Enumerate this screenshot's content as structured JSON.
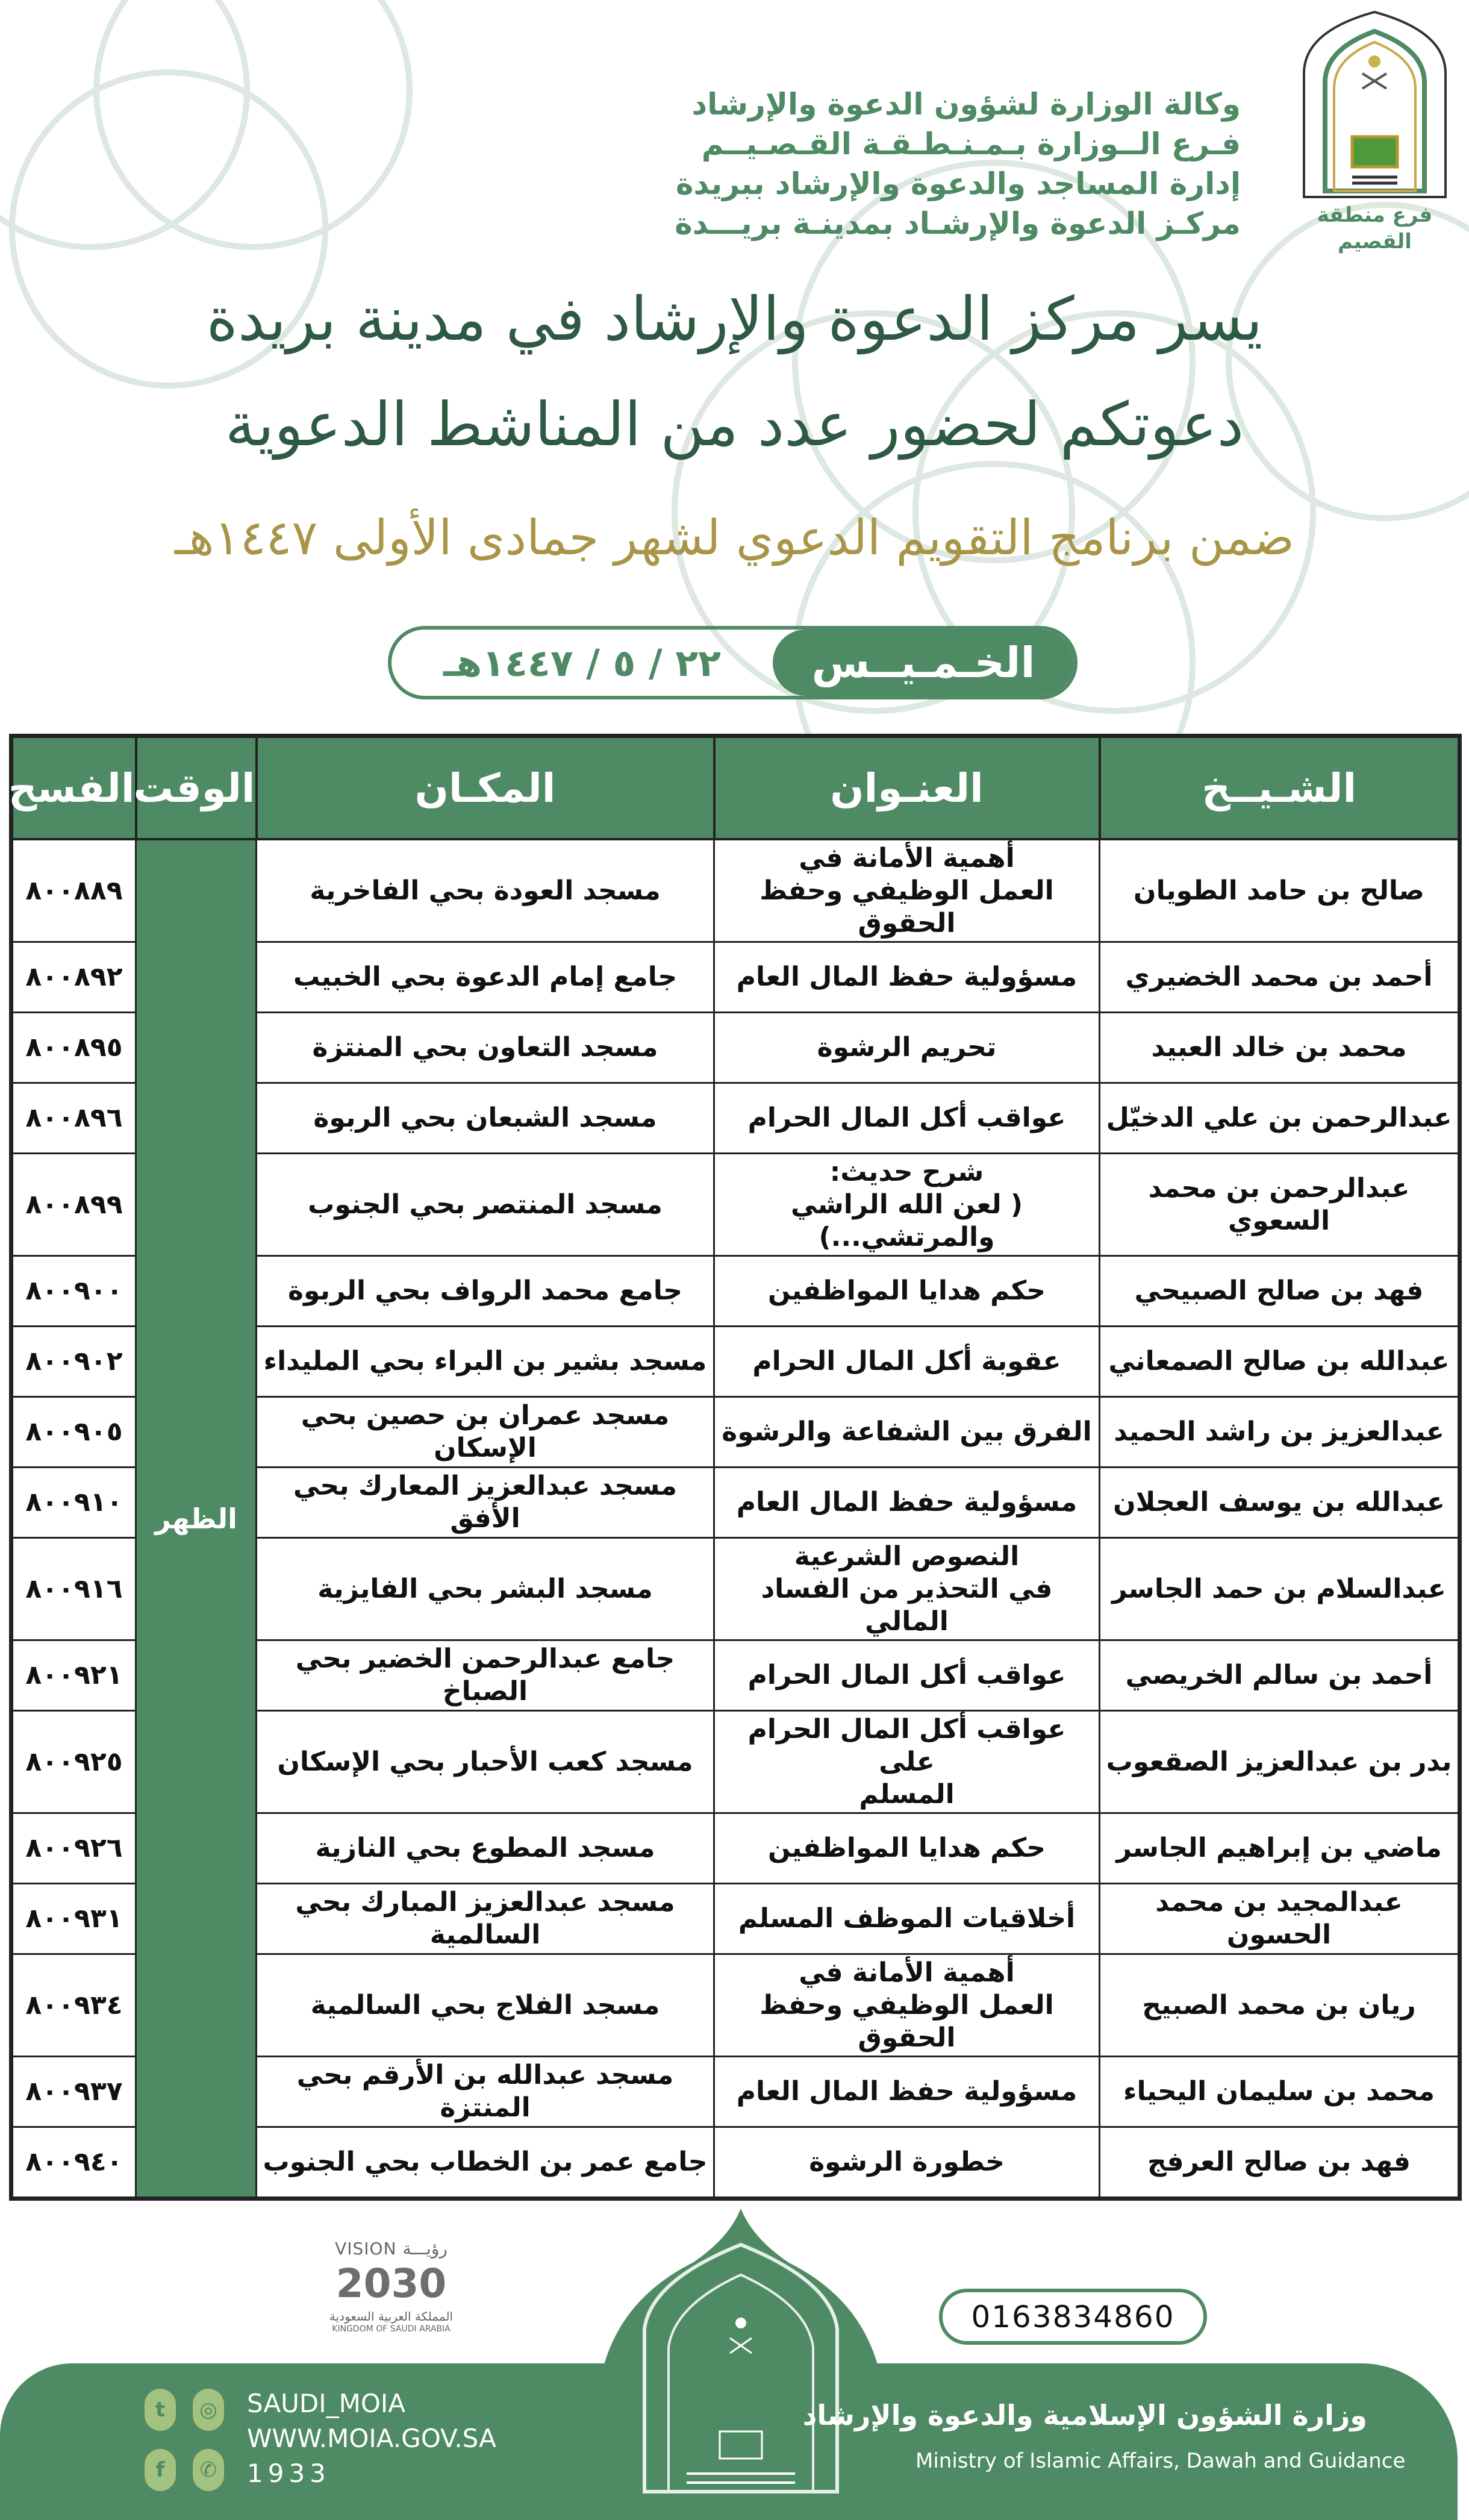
{
  "colors": {
    "brand_green": "#4e8a63",
    "title_green": "#2e5a44",
    "gold": "#a99548"
  },
  "header": {
    "lines": [
      "وكالة الوزارة لشؤون الدعوة والإرشاد",
      "فـرع الــوزارة بـمـنـطـقـة القـصـيــم",
      "إدارة المساجد والدعوة والإرشاد ببريدة",
      "مركـز الدعوة والإرشـاد بمدينـة بريـــدة"
    ],
    "logo_caption": "فرع منطقة القصيم"
  },
  "title": {
    "line1": "يسر مركز الدعوة والإرشاد في مدينة بريدة",
    "line2": "دعوتكم لحضور عدد من المناشط الدعوية",
    "line3": "ضمن برنامج التقويم الدعوي لشهر جمادى الأولى ١٤٤٧هـ"
  },
  "date_pill": {
    "day": "الخـمـيــس",
    "date": "٢٢ / ٥ / ١٤٤٧هـ"
  },
  "table": {
    "headers": {
      "sheikh": "الشـيــخ",
      "title": "العنـوان",
      "place": "المكـان",
      "time": "الوقت",
      "permit": "الفسح"
    },
    "time_value": "الظهر",
    "rows": [
      {
        "sheikh": "صالح بن حامد الطويان",
        "title": "أهمية الأمانة في\nالعمل الوظيفي وحفظ الحقوق",
        "place": "مسجد العودة بحي الفاخرية",
        "permit": "٨٠٠٨٨٩",
        "tall": true
      },
      {
        "sheikh": "أحمد بن محمد الخضيري",
        "title": "مسؤولية حفظ المال العام",
        "place": "جامع إمام الدعوة بحي الخبيب",
        "permit": "٨٠٠٨٩٢"
      },
      {
        "sheikh": "محمد بن خالد العبيد",
        "title": "تحريم الرشوة",
        "place": "مسجد  التعاون بحي المنتزة",
        "permit": "٨٠٠٨٩٥"
      },
      {
        "sheikh": "عبدالرحمن بن علي الدخيّل",
        "title": "عواقب أكل المال الحرام",
        "place": "مسجد الشبعان بحي الربوة",
        "permit": "٨٠٠٨٩٦"
      },
      {
        "sheikh": "عبدالرحمن بن محمد السعوي",
        "title": "شرح حديث:\n( لعن الله الراشي والمرتشي...)",
        "place": "مسجد المنتصر بحي الجنوب",
        "permit": "٨٠٠٨٩٩",
        "tall": true
      },
      {
        "sheikh": "فهد بن صالح الصبيحي",
        "title": "حكم هدايا المواظفين",
        "place": "جامع محمد الرواف بحي الربوة",
        "permit": "٨٠٠٩٠٠"
      },
      {
        "sheikh": "عبدالله بن صالح الصمعاني",
        "title": "عقوبة أكل المال الحرام",
        "place": "مسجد بشير بن البراء بحي المليداء",
        "permit": "٨٠٠٩٠٢"
      },
      {
        "sheikh": "عبدالعزيز بن راشد الحميد",
        "title": "الفرق بين الشفاعة والرشوة",
        "place": "مسجد عمران بن حصين بحي الإسكان",
        "permit": "٨٠٠٩٠٥"
      },
      {
        "sheikh": "عبدالله بن يوسف العجلان",
        "title": "مسؤولية حفظ المال العام",
        "place": "مسجد عبدالعزيز المعارك بحي الأفق",
        "permit": "٨٠٠٩١٠"
      },
      {
        "sheikh": "عبدالسلام بن حمد الجاسر",
        "title": "النصوص الشرعية\nفي التحذير من الفساد المالي",
        "place": "مسجد البشر بحي الفايزية",
        "permit": "٨٠٠٩١٦",
        "tall": true
      },
      {
        "sheikh": "أحمد بن سالم الخريصي",
        "title": "عواقب أكل المال الحرام",
        "place": "جامع عبدالرحمن الخضير بحي الصباخ",
        "permit": "٨٠٠٩٢١"
      },
      {
        "sheikh": "بدر بن عبدالعزيز الصقعوب",
        "title": "عواقب أكل المال الحرام على\nالمسلم",
        "place": "مسجد كعب الأحبار بحي الإسكان",
        "permit": "٨٠٠٩٢٥",
        "tall": true
      },
      {
        "sheikh": "ماضي بن إبراهيم الجاسر",
        "title": "حكم هدايا المواظفين",
        "place": "مسجد المطوع بحي النازية",
        "permit": "٨٠٠٩٢٦"
      },
      {
        "sheikh": "عبدالمجيد بن محمد الحسون",
        "title": "أخلاقيات الموظف المسلم",
        "place": "مسجد عبدالعزيز المبارك بحي السالمية",
        "permit": "٨٠٠٩٣١"
      },
      {
        "sheikh": "ريان بن محمد الصبيح",
        "title": "أهمية الأمانة في\nالعمل الوظيفي وحفظ الحقوق",
        "place": "مسجد الفلاج بحي السالمية",
        "permit": "٨٠٠٩٣٤",
        "tall": true
      },
      {
        "sheikh": "محمد بن سليمان اليحياء",
        "title": "مسؤولية حفظ المال العام",
        "place": "مسجد  عبدالله بن الأرقم بحي المنتزة",
        "permit": "٨٠٠٩٣٧"
      },
      {
        "sheikh": "فهد بن صالح العرفج",
        "title": "خطورة الرشوة",
        "place": "جامع عمر بن الخطاب بحي الجنوب",
        "permit": "٨٠٠٩٤٠"
      }
    ]
  },
  "footer": {
    "phone": "0163834860",
    "vision": {
      "label_en": "VISION",
      "label_ar": "رؤيـــة",
      "year": "2030",
      "kingdom_ar": "المملكة العربية السعودية",
      "kingdom_en": "KINGDOM OF SAUDI ARABIA"
    },
    "social": {
      "handle": "SAUDI_MOIA",
      "website": "WWW.MOIA.GOV.SA",
      "phone": "1933",
      "icons": [
        "twitter-icon",
        "instagram-icon",
        "facebook-icon",
        "phone-icon"
      ]
    },
    "ministry_ar": "وزارة الشؤون الإسلامية والدعوة والإرشاد",
    "ministry_en": "Ministry of Islamic Affairs, Dawah and Guidance"
  }
}
